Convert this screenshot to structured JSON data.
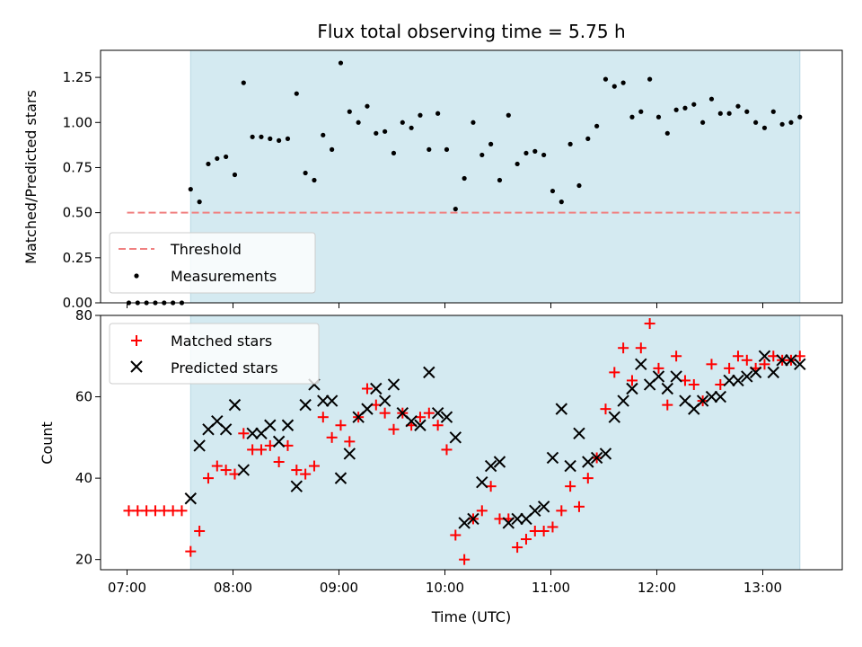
{
  "colors": {
    "shade": "#d4eaf1",
    "threshold": "#f08080",
    "measurement": "#000000",
    "matched": "#ff0000",
    "predicted": "#000000"
  },
  "chart_data": [
    {
      "type": "scatter",
      "title": "Flux total observing time = 5.75 h",
      "xlabel": "",
      "ylabel": "Matched/Predicted stars",
      "ylim": [
        0,
        1.4
      ],
      "yticks": [
        "0.00",
        "0.25",
        "0.50",
        "0.75",
        "1.00",
        "1.25"
      ],
      "shaded_span": [
        "07:36",
        "13:21"
      ],
      "threshold": {
        "name": "Threshold",
        "y": 0.5,
        "x_range": [
          "07:00",
          "13:21"
        ]
      },
      "legend": {
        "placement": "lower-left",
        "entries": [
          "Threshold",
          "Measurements"
        ]
      },
      "series": [
        {
          "name": "Measurements",
          "x": [
            "07:01",
            "07:06",
            "07:11",
            "07:16",
            "07:21",
            "07:26",
            "07:31",
            "07:36",
            "07:41",
            "07:46",
            "07:51",
            "07:56",
            "08:01",
            "08:06",
            "08:11",
            "08:16",
            "08:21",
            "08:26",
            "08:31",
            "08:36",
            "08:41",
            "08:46",
            "08:51",
            "08:56",
            "09:01",
            "09:06",
            "09:11",
            "09:16",
            "09:21",
            "09:26",
            "09:31",
            "09:36",
            "09:41",
            "09:46",
            "09:51",
            "09:56",
            "10:01",
            "10:06",
            "10:11",
            "10:16",
            "10:21",
            "10:26",
            "10:31",
            "10:36",
            "10:41",
            "10:46",
            "10:51",
            "10:56",
            "11:01",
            "11:06",
            "11:11",
            "11:16",
            "11:21",
            "11:26",
            "11:31",
            "11:36",
            "11:41",
            "11:46",
            "11:51",
            "11:56",
            "12:01",
            "12:06",
            "12:11",
            "12:16",
            "12:21",
            "12:26",
            "12:31",
            "12:36",
            "12:41",
            "12:46",
            "12:51",
            "12:56",
            "13:01",
            "13:06",
            "13:11",
            "13:16",
            "13:21"
          ],
          "y": [
            0,
            0,
            0,
            0,
            0,
            0,
            0,
            0.63,
            0.56,
            0.77,
            0.8,
            0.81,
            0.71,
            1.22,
            0.92,
            0.92,
            0.91,
            0.9,
            0.91,
            1.16,
            0.72,
            0.68,
            0.93,
            0.85,
            1.33,
            1.06,
            1.0,
            1.09,
            0.94,
            0.95,
            0.83,
            1.0,
            0.97,
            1.04,
            0.85,
            1.05,
            0.85,
            0.52,
            0.69,
            1.0,
            0.82,
            0.88,
            0.68,
            1.04,
            0.77,
            0.83,
            0.84,
            0.82,
            0.62,
            0.56,
            0.88,
            0.65,
            0.91,
            0.98,
            1.24,
            1.2,
            1.22,
            1.03,
            1.06,
            1.24,
            1.03,
            0.94,
            1.07,
            1.08,
            1.1,
            1.0,
            1.13,
            1.05,
            1.05,
            1.09,
            1.06,
            1.0,
            0.97,
            1.06,
            0.99,
            1.0,
            1.03
          ]
        }
      ]
    },
    {
      "type": "scatter",
      "title": "",
      "xlabel": "Time (UTC)",
      "ylabel": "Count",
      "ylim": [
        17.5,
        80
      ],
      "xlim": [
        "06:45",
        "13:45"
      ],
      "yticks": [
        "20",
        "40",
        "60",
        "80"
      ],
      "xticks": [
        "07:00",
        "08:00",
        "09:00",
        "10:00",
        "11:00",
        "12:00",
        "13:00"
      ],
      "shaded_span": [
        "07:36",
        "13:21"
      ],
      "legend": {
        "placement": "upper-left",
        "entries": [
          "Matched stars",
          "Predicted stars"
        ]
      },
      "series": [
        {
          "name": "Matched stars",
          "x": [
            "07:01",
            "07:06",
            "07:11",
            "07:16",
            "07:21",
            "07:26",
            "07:31",
            "07:36",
            "07:41",
            "07:46",
            "07:51",
            "07:56",
            "08:01",
            "08:06",
            "08:11",
            "08:16",
            "08:21",
            "08:26",
            "08:31",
            "08:36",
            "08:41",
            "08:46",
            "08:51",
            "08:56",
            "09:01",
            "09:06",
            "09:11",
            "09:16",
            "09:21",
            "09:26",
            "09:31",
            "09:36",
            "09:41",
            "09:46",
            "09:51",
            "09:56",
            "10:01",
            "10:06",
            "10:11",
            "10:16",
            "10:21",
            "10:26",
            "10:31",
            "10:36",
            "10:41",
            "10:46",
            "10:51",
            "10:56",
            "11:01",
            "11:06",
            "11:11",
            "11:16",
            "11:21",
            "11:26",
            "11:31",
            "11:36",
            "11:41",
            "11:46",
            "11:51",
            "11:56",
            "12:01",
            "12:06",
            "12:11",
            "12:16",
            "12:21",
            "12:26",
            "12:31",
            "12:36",
            "12:41",
            "12:46",
            "12:51",
            "12:56",
            "13:01",
            "13:06",
            "13:11",
            "13:16",
            "13:21"
          ],
          "y": [
            32,
            32,
            32,
            32,
            32,
            32,
            32,
            22,
            27,
            40,
            43,
            42,
            41,
            51,
            47,
            47,
            48,
            44,
            48,
            42,
            41,
            43,
            55,
            50,
            53,
            49,
            55,
            62,
            58,
            56,
            52,
            56,
            53,
            55,
            56,
            53,
            47,
            26,
            20,
            30,
            32,
            38,
            30,
            30,
            23,
            25,
            27,
            27,
            28,
            32,
            38,
            33,
            40,
            45,
            57,
            66,
            72,
            64,
            72,
            78,
            67,
            58,
            70,
            64,
            63,
            59,
            68,
            63,
            67,
            70,
            69,
            67,
            68,
            70,
            69,
            69,
            70
          ]
        },
        {
          "name": "Predicted stars",
          "x": [
            "07:36",
            "07:41",
            "07:46",
            "07:51",
            "07:56",
            "08:01",
            "08:06",
            "08:11",
            "08:16",
            "08:21",
            "08:26",
            "08:31",
            "08:36",
            "08:41",
            "08:46",
            "08:51",
            "08:56",
            "09:01",
            "09:06",
            "09:11",
            "09:16",
            "09:21",
            "09:26",
            "09:31",
            "09:36",
            "09:41",
            "09:46",
            "09:51",
            "09:56",
            "10:01",
            "10:06",
            "10:11",
            "10:16",
            "10:21",
            "10:26",
            "10:31",
            "10:36",
            "10:41",
            "10:46",
            "10:51",
            "10:56",
            "11:01",
            "11:06",
            "11:11",
            "11:16",
            "11:21",
            "11:26",
            "11:31",
            "11:36",
            "11:41",
            "11:46",
            "11:51",
            "11:56",
            "12:01",
            "12:06",
            "12:11",
            "12:16",
            "12:21",
            "12:26",
            "12:31",
            "12:36",
            "12:41",
            "12:46",
            "12:51",
            "12:56",
            "13:01",
            "13:06",
            "13:11",
            "13:16",
            "13:21"
          ],
          "y": [
            35,
            48,
            52,
            54,
            52,
            58,
            42,
            51,
            51,
            53,
            49,
            53,
            38,
            58,
            63,
            59,
            59,
            40,
            46,
            55,
            57,
            62,
            59,
            63,
            56,
            54,
            53,
            66,
            56,
            55,
            50,
            29,
            30,
            39,
            43,
            44,
            29,
            30,
            30,
            32,
            33,
            45,
            57,
            43,
            51,
            44,
            45,
            46,
            55,
            59,
            62,
            68,
            63,
            65,
            62,
            65,
            59,
            57,
            59,
            60,
            60,
            64,
            64,
            65,
            66,
            70,
            66,
            69,
            69,
            68
          ]
        }
      ]
    }
  ]
}
